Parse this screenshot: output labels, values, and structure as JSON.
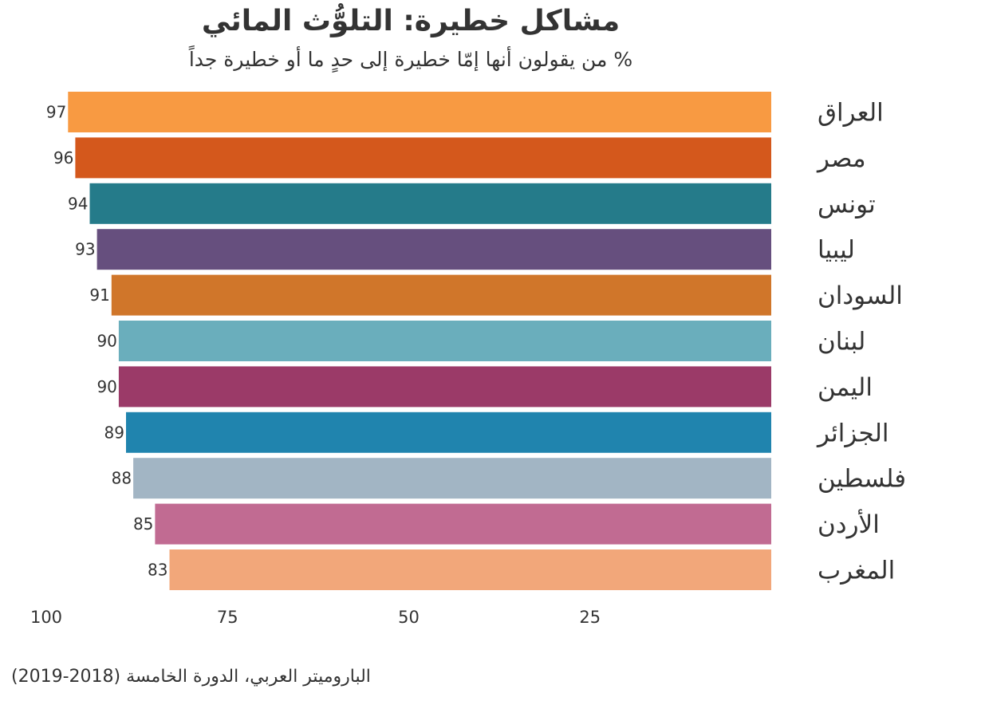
{
  "chart_data": {
    "type": "bar",
    "orientation": "horizontal",
    "title": "مشاكل خطيرة: التلوُّث المائي",
    "subtitle": "% من يقولون أنها إمّا خطيرة إلى حدٍ ما أو خطيرة جداً",
    "xlabel": "",
    "ylabel": "",
    "xlim": [
      100,
      0
    ],
    "x_reversed": true,
    "x_ticks": [
      100,
      75,
      50,
      25
    ],
    "grid": false,
    "categories": [
      "العراق",
      "مصر",
      "تونس",
      "ليبيا",
      "السودان",
      "لبنان",
      "اليمن",
      "الجزائر",
      "فلسطين",
      "الأردن",
      "المغرب"
    ],
    "values": [
      97,
      96,
      94,
      93,
      91,
      90,
      90,
      89,
      88,
      85,
      83
    ],
    "colors": [
      "#F89A42",
      "#D4581C",
      "#257B8A",
      "#664F7E",
      "#D0762A",
      "#6AAEBC",
      "#9B3A68",
      "#2084AE",
      "#A2B5C4",
      "#C16B92",
      "#F2A77A"
    ],
    "source": "الباروميتر العربي، الدورة الخامسة (2018-2019)"
  }
}
